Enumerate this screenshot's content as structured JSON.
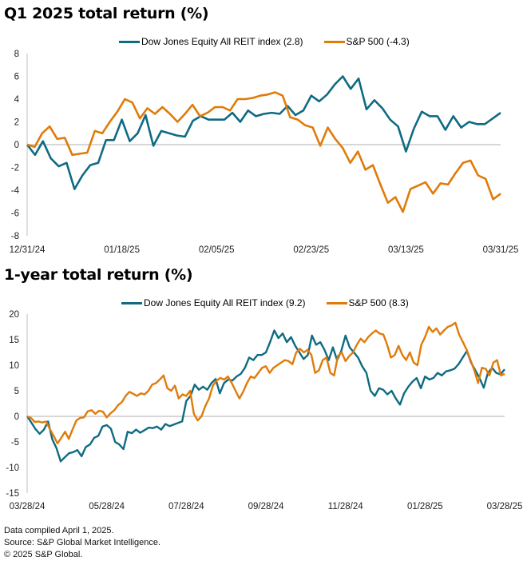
{
  "titles": {
    "q1": "Q1 2025 total return (%)",
    "one_year": "1-year total return (%)"
  },
  "colors": {
    "reit": "#0f6b82",
    "sp500": "#e07b0a",
    "axis": "#bfbfbf"
  },
  "footer": {
    "line1": "Data compiled April 1, 2025.",
    "line2": "Source: S&P Global Market Intelligence.",
    "line3": "© 2025 S&P Global."
  },
  "chart_data": [
    {
      "type": "line",
      "title": "Q1 2025 total return (%)",
      "xlabel": "",
      "ylabel": "",
      "ylim": [
        -8,
        8
      ],
      "yticks": [
        "8",
        "6",
        "4",
        "2",
        "0",
        "-2",
        "-4",
        "-6",
        "-8"
      ],
      "ytick_values": [
        8,
        6,
        4,
        2,
        0,
        -2,
        -4,
        -6,
        -8
      ],
      "xtick_labels": [
        "12/31/24",
        "01/18/25",
        "02/05/25",
        "02/23/25",
        "03/13/25",
        "03/31/25"
      ],
      "grid": false,
      "legend_position": "top-center",
      "legend": [
        {
          "key": "reit",
          "label": "Dow Jones Equity All REIT index (2.8)"
        },
        {
          "key": "sp500",
          "label": "S&P 500 (-4.3)"
        }
      ],
      "series": [
        {
          "name": "Dow Jones Equity All REIT index",
          "key": "reit",
          "values": [
            0,
            -0.9,
            0.3,
            -1.2,
            -1.9,
            -1.6,
            -3.9,
            -2.7,
            -1.8,
            -1.6,
            0.4,
            0.4,
            2.2,
            0.3,
            1.0,
            2.6,
            -0.1,
            1.2,
            1.0,
            0.8,
            0.7,
            2.1,
            2.5,
            2.2,
            2.2,
            2.2,
            2.8,
            2.0,
            3.0,
            2.5,
            2.7,
            2.8,
            2.7,
            3.4,
            2.6,
            3.0,
            4.3,
            3.8,
            4.4,
            5.3,
            6.0,
            4.9,
            5.8,
            3.1,
            3.9,
            3.2,
            2.2,
            1.6,
            -0.6,
            1.4,
            2.9,
            2.5,
            2.5,
            1.3,
            2.5,
            1.5,
            2.0,
            1.8,
            1.8,
            2.3,
            2.8
          ],
          "final": 2.8
        },
        {
          "name": "S&P 500",
          "key": "sp500",
          "values": [
            0,
            -0.2,
            1.0,
            1.6,
            0.5,
            0.6,
            -0.9,
            -0.8,
            -0.7,
            1.2,
            1.0,
            2.0,
            2.9,
            4.0,
            3.7,
            2.3,
            3.2,
            2.7,
            3.3,
            2.7,
            2.0,
            2.7,
            3.5,
            2.5,
            2.8,
            3.3,
            3.3,
            3.0,
            4.0,
            4.0,
            4.1,
            4.3,
            4.4,
            4.6,
            4.3,
            2.4,
            2.2,
            1.7,
            1.5,
            -0.1,
            1.5,
            0.5,
            -0.3,
            -1.6,
            -0.6,
            -2.2,
            -1.8,
            -3.5,
            -5.1,
            -4.6,
            -5.9,
            -3.9,
            -3.6,
            -3.3,
            -4.3,
            -3.4,
            -3.5,
            -2.5,
            -1.6,
            -1.4,
            -2.7,
            -3.0,
            -4.8,
            -4.3
          ],
          "final": -4.3
        }
      ]
    },
    {
      "type": "line",
      "title": "1-year total return (%)",
      "xlabel": "",
      "ylabel": "",
      "ylim": [
        -15,
        20
      ],
      "yticks": [
        "20",
        "15",
        "10",
        "5",
        "0",
        "-5",
        "-10",
        "-15"
      ],
      "ytick_values": [
        20,
        15,
        10,
        5,
        0,
        -5,
        -10,
        -15
      ],
      "xtick_labels": [
        "03/28/24",
        "05/28/24",
        "07/28/24",
        "09/28/24",
        "11/28/24",
        "01/28/25",
        "03/28/25"
      ],
      "grid": false,
      "legend_position": "top-center",
      "legend": [
        {
          "key": "reit",
          "label": "Dow Jones Equity All REIT index (9.2)"
        },
        {
          "key": "sp500",
          "label": "S&P 500 (8.3)"
        }
      ],
      "series": [
        {
          "name": "Dow Jones Equity All REIT index",
          "key": "reit",
          "values": [
            0,
            -1.2,
            -2.5,
            -3.4,
            -2.6,
            -1.0,
            -4.5,
            -6.2,
            -8.8,
            -8.0,
            -7.2,
            -7.0,
            -6.6,
            -7.8,
            -6.0,
            -5.5,
            -4.2,
            -3.8,
            -2.0,
            -1.7,
            -2.4,
            -5.0,
            -5.5,
            -6.4,
            -3.0,
            -3.3,
            -2.6,
            -3.2,
            -2.7,
            -2.2,
            -2.3,
            -2.0,
            -2.6,
            -1.5,
            -1.9,
            -1.6,
            -1.3,
            -1.0,
            3.0,
            4.0,
            6.2,
            5.2,
            5.8,
            5.2,
            6.5,
            7.3,
            4.5,
            6.5,
            7.2,
            7.0,
            7.8,
            8.3,
            9.5,
            11.5,
            11.0,
            12.0,
            12.0,
            12.5,
            14.5,
            16.8,
            15.3,
            16.2,
            14.5,
            15.5,
            13.8,
            12.5,
            11.2,
            12.0,
            15.8,
            14.0,
            14.5,
            13.0,
            11.0,
            13.5,
            11.0,
            12.8,
            15.8,
            13.5,
            12.5,
            11.5,
            9.8,
            8.5,
            5.0,
            4.0,
            5.5,
            5.2,
            4.3,
            5.0,
            3.5,
            2.3,
            4.5,
            5.8,
            6.8,
            7.5,
            5.5,
            7.8,
            7.2,
            7.5,
            8.5,
            8.0,
            8.8,
            9.0,
            9.3,
            10.2,
            11.5,
            12.8,
            10.5,
            9.0,
            7.5,
            5.6,
            8.5,
            9.5,
            8.5,
            8.2,
            9.2
          ],
          "final": 9.2
        },
        {
          "name": "S&P 500",
          "key": "sp500",
          "values": [
            0,
            -0.3,
            -1.1,
            -1.0,
            -1.2,
            -1.0,
            -2.5,
            -3.8,
            -5.3,
            -4.2,
            -3.0,
            -4.4,
            -2.5,
            -0.8,
            -0.3,
            -0.2,
            1.0,
            1.2,
            0.5,
            1.1,
            0.9,
            -0.2,
            0.6,
            1.2,
            2.2,
            2.8,
            4.0,
            4.8,
            4.4,
            4.0,
            4.5,
            4.3,
            5.0,
            6.2,
            6.5,
            7.2,
            8.0,
            5.5,
            5.0,
            6.0,
            3.5,
            4.3,
            4.0,
            5.0,
            0.5,
            -0.8,
            0.0,
            2.0,
            3.5,
            6.0,
            7.0,
            7.5,
            7.2,
            7.8,
            6.5,
            5.0,
            3.5,
            4.8,
            6.5,
            7.8,
            7.5,
            8.5,
            9.5,
            9.8,
            8.5,
            9.5,
            10.0,
            10.5,
            11.0,
            10.8,
            10.2,
            12.5,
            13.2,
            12.5,
            13.0,
            12.0,
            8.5,
            9.0,
            11.0,
            11.5,
            8.5,
            8.0,
            11.8,
            12.5,
            10.8,
            11.8,
            12.5,
            14.0,
            15.2,
            14.5,
            15.5,
            16.2,
            16.8,
            16.2,
            16.0,
            14.0,
            11.5,
            12.0,
            13.8,
            12.0,
            11.0,
            12.5,
            10.5,
            10.0,
            14.0,
            15.5,
            17.5,
            16.5,
            17.2,
            16.0,
            16.8,
            17.5,
            17.8,
            18.3,
            16.0,
            14.5,
            13.0,
            11.0,
            9.0,
            6.5,
            9.5,
            9.3,
            8.0,
            10.5,
            11.0,
            8.0,
            8.3
          ],
          "final": 8.3
        }
      ]
    }
  ]
}
